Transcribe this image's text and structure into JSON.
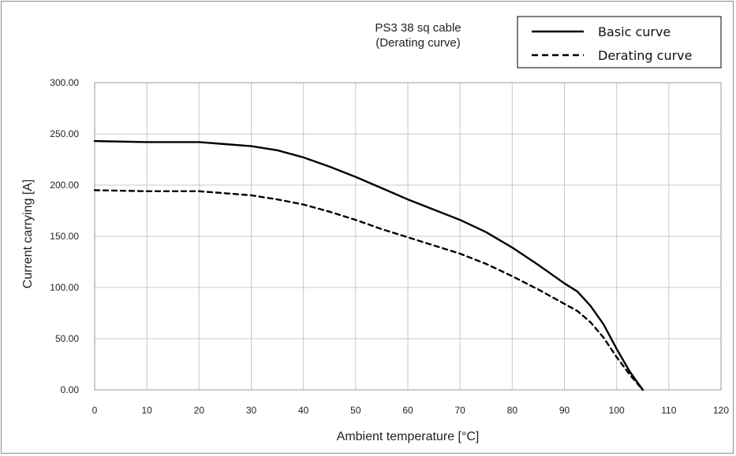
{
  "chart_data": {
    "type": "line",
    "title": "PS3   38 sq cable",
    "subtitle": "(Derating curve)",
    "xlabel": "Ambient temperature [°C]",
    "ylabel": "Current carrying [A]",
    "xlim": [
      0,
      120
    ],
    "ylim": [
      0,
      300
    ],
    "x_ticks": [
      "0",
      "10",
      "20",
      "30",
      "40",
      "50",
      "60",
      "70",
      "80",
      "90",
      "100",
      "110",
      "120"
    ],
    "y_ticks": [
      "0.00",
      "50.00",
      "100.00",
      "150.00",
      "200.00",
      "250.00",
      "300.00"
    ],
    "grid": true,
    "legend_position": "top-right",
    "series": [
      {
        "name": "Basic curve",
        "style": "solid",
        "color": "#000000",
        "x": [
          0,
          10,
          20,
          25,
          30,
          35,
          40,
          45,
          50,
          55,
          60,
          65,
          70,
          75,
          80,
          85,
          90,
          92.5,
          95,
          97.5,
          100,
          102.5,
          105
        ],
        "y": [
          243,
          242,
          242,
          240,
          238,
          234,
          227,
          218,
          208,
          197,
          186,
          176,
          166,
          154,
          139,
          122,
          104,
          96,
          82,
          64,
          40,
          18,
          0
        ]
      },
      {
        "name": "Derating curve",
        "style": "dashed",
        "color": "#000000",
        "x": [
          0,
          10,
          20,
          25,
          30,
          35,
          40,
          45,
          50,
          55,
          60,
          65,
          70,
          75,
          80,
          85,
          90,
          92.5,
          95,
          97.5,
          100,
          102.5,
          105
        ],
        "y": [
          195,
          194,
          194,
          192,
          190,
          186,
          181,
          174,
          166,
          157,
          149,
          141,
          133,
          123,
          111,
          98,
          84,
          77,
          66,
          51,
          32,
          15,
          0
        ]
      }
    ]
  }
}
